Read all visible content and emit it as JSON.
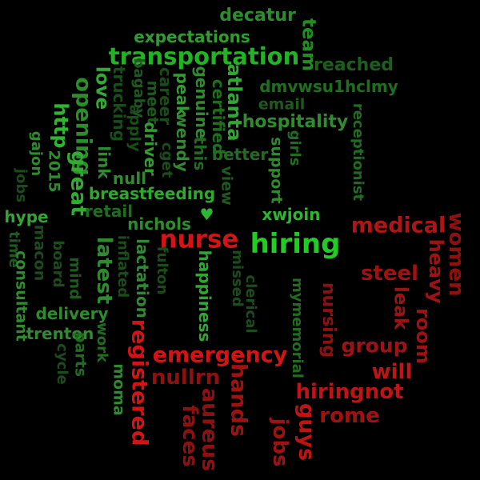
{
  "words": [
    {
      "text": "decatur",
      "color": "#2e8b2e"
    },
    {
      "text": "expectations",
      "color": "#2f9e2f"
    },
    {
      "text": "team",
      "color": "#1f8f1f"
    },
    {
      "text": "transportation",
      "color": "#22b322"
    },
    {
      "text": "reached",
      "color": "#1c5e1c"
    },
    {
      "text": "love",
      "color": "#33aa33"
    },
    {
      "text": "trucking",
      "color": "#1b4d1b"
    },
    {
      "text": "bagaby",
      "color": "#1e5a1e"
    },
    {
      "text": "career",
      "color": "#1b4d1b"
    },
    {
      "text": "genuine",
      "color": "#2e8b2e"
    },
    {
      "text": "atlanta",
      "color": "#2fa82f"
    },
    {
      "text": "dmvwsu1hclmy",
      "color": "#1f6e1f"
    },
    {
      "text": "email",
      "color": "#1e5a1e"
    },
    {
      "text": "opening",
      "color": "#2a8f2a"
    },
    {
      "text": "meet",
      "color": "#1e5a1e"
    },
    {
      "text": "apply",
      "color": "#1b4d1b"
    },
    {
      "text": "cget",
      "color": "#1b4d1b"
    },
    {
      "text": "peak",
      "color": "#2f9e2f"
    },
    {
      "text": "certified",
      "color": "#1f6e1f"
    },
    {
      "text": "hospitality",
      "color": "#2e8b2e"
    },
    {
      "text": "http",
      "color": "#2fb52f"
    },
    {
      "text": "driver",
      "color": "#2f9e2f"
    },
    {
      "text": "wendy",
      "color": "#2e8b2e"
    },
    {
      "text": "receptionist",
      "color": "#1f6e1f"
    },
    {
      "text": "gajon",
      "color": "#2e8b2e"
    },
    {
      "text": "2015",
      "color": "#2e8b2e"
    },
    {
      "text": "link",
      "color": "#2e8b2e"
    },
    {
      "text": "this",
      "color": "#1f6e1f"
    },
    {
      "text": "better",
      "color": "#1f6e1f"
    },
    {
      "text": "girls",
      "color": "#1f6e1f"
    },
    {
      "text": "support",
      "color": "#2e8b2e"
    },
    {
      "text": "jobs",
      "color": "#1b4d1b"
    },
    {
      "text": "null",
      "color": "#2e8b2e"
    },
    {
      "text": "great",
      "color": "#33aa33"
    },
    {
      "text": "breastfeeding",
      "color": "#2fa82f"
    },
    {
      "text": "view",
      "color": "#1e5a1e"
    },
    {
      "text": "♥　　　xwjoin",
      "color": "#2fb52f"
    },
    {
      "text": "hype",
      "color": "#2fa82f"
    },
    {
      "text": "retail",
      "color": "#1f6e1f"
    },
    {
      "text": "nichols",
      "color": "#2e8b2e"
    },
    {
      "text": "medical",
      "color": "#b01515"
    },
    {
      "text": "women",
      "color": "#8f1010"
    },
    {
      "text": "time",
      "color": "#1e5a1e"
    },
    {
      "text": "macon",
      "color": "#1b4d1b"
    },
    {
      "text": "board",
      "color": "#1b4d1b"
    },
    {
      "text": "nurse",
      "color": "#d41414"
    },
    {
      "text": "hiring",
      "color": "#22cc22"
    },
    {
      "text": "heavy",
      "color": "#a01212"
    },
    {
      "text": "latest",
      "color": "#2e8b2e"
    },
    {
      "text": "inflated",
      "color": "#1b4d1b"
    },
    {
      "text": "lactation",
      "color": "#2e8b2e"
    },
    {
      "text": "fulton",
      "color": "#1b4d1b"
    },
    {
      "text": "consultant",
      "color": "#2e8b2e"
    },
    {
      "text": "mind",
      "color": "#1e5a1e"
    },
    {
      "text": "steel",
      "color": "#a01212"
    },
    {
      "text": "room",
      "color": "#a01212"
    },
    {
      "text": "leak",
      "color": "#a01212"
    },
    {
      "text": "delivery",
      "color": "#2e8b2e"
    },
    {
      "text": "missed",
      "color": "#1b4d1b"
    },
    {
      "text": "clerical",
      "color": "#1b4d1b"
    },
    {
      "text": "nursing",
      "color": "#8f1010"
    },
    {
      "text": "happiness",
      "color": "#2fa82f"
    },
    {
      "text": "trenton",
      "color": "#2e8b2e"
    },
    {
      "text": "work",
      "color": "#1f6e1f"
    },
    {
      "text": "parts",
      "color": "#1f6e1f"
    },
    {
      "text": "cycle",
      "color": "#1b4d1b"
    },
    {
      "text": "registered",
      "color": "#d41414"
    },
    {
      "text": "mymemorial",
      "color": "#1f6e1f"
    },
    {
      "text": "group",
      "color": "#a01212"
    },
    {
      "text": "emergency",
      "color": "#d41414"
    },
    {
      "text": "moma",
      "color": "#2e8b2e"
    },
    {
      "text": "will",
      "color": "#c01313"
    },
    {
      "text": "nullrn",
      "color": "#8f1010"
    },
    {
      "text": "hands",
      "color": "#a01212"
    },
    {
      "text": "hiringnot",
      "color": "#c01313"
    },
    {
      "text": "aureus",
      "color": "#8f1010"
    },
    {
      "text": "faces",
      "color": "#8f1010"
    },
    {
      "text": "guys",
      "color": "#c01313"
    },
    {
      "text": "rome",
      "color": "#a01212"
    },
    {
      "text": "jobs",
      "color": "#a01212"
    }
  ]
}
